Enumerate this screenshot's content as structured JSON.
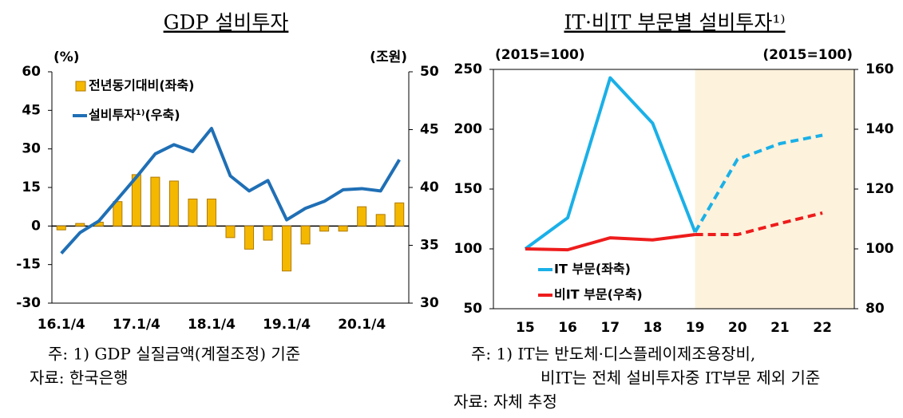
{
  "chart_data": [
    {
      "type": "bar_line",
      "title": "GDP 설비투자",
      "ylabel": "(%)",
      "y2label": "(조원)",
      "categories": [
        "16.1/4",
        null,
        null,
        null,
        "17.1/4",
        null,
        null,
        null,
        "18.1/4",
        null,
        null,
        null,
        "19.1/4",
        null,
        null,
        null,
        "20.1/4",
        null,
        null
      ],
      "ylim": [
        -30,
        60
      ],
      "yticks": [
        -30,
        -15,
        0,
        15,
        30,
        45,
        60
      ],
      "y2lim": [
        30,
        50
      ],
      "y2ticks": [
        30,
        35,
        40,
        45,
        50
      ],
      "legend": "upper left",
      "series": [
        {
          "name": "전년동기대비(좌축)",
          "type": "bar",
          "color": "#f5b800",
          "values": [
            -1.5,
            1,
            1.5,
            9.5,
            20,
            19,
            17.5,
            10.5,
            10.5,
            -4.5,
            -9,
            -5.5,
            -17.5,
            -7,
            -2,
            -2,
            7.5,
            4.5,
            9
          ]
        },
        {
          "name": "설비투자¹⁾(우축)",
          "type": "line",
          "axis": "y2",
          "color": "#1f6fb5",
          "values": [
            34.3,
            36.1,
            37.1,
            39.0,
            40.9,
            42.9,
            43.7,
            43.1,
            45.1,
            41.0,
            39.7,
            40.6,
            37.2,
            38.2,
            38.8,
            39.8,
            39.9,
            39.7,
            42.4
          ]
        }
      ],
      "notes": [
        "주: 1) GDP 실질금액(계절조정) 기준",
        "자료: 한국은행"
      ]
    },
    {
      "type": "line",
      "title": "IT·비IT 부문별 설비투자¹⁾",
      "ylabel": "(2015=100)",
      "y2label": "(2015=100)",
      "x": [
        15,
        16,
        17,
        18,
        19,
        20,
        21,
        22
      ],
      "xlim": [
        14.25,
        22.75
      ],
      "xticks": [
        15,
        16,
        17,
        18,
        19,
        20,
        21,
        22
      ],
      "ylim": [
        50,
        250
      ],
      "yticks": [
        50,
        100,
        150,
        200,
        250
      ],
      "y2lim": [
        80,
        160
      ],
      "y2ticks": [
        80,
        100,
        120,
        140,
        160
      ],
      "forecast_from": 19,
      "legend": "lower left",
      "series": [
        {
          "name": "IT 부문(좌축)",
          "color": "#1ab0e8",
          "values": [
            100,
            126,
            243,
            205,
            114,
            175,
            188,
            195
          ]
        },
        {
          "name": "비IT 부문(우축)",
          "axis": "y2",
          "color": "#ee1c1c",
          "values": [
            100,
            99.7,
            103.7,
            103,
            104.8,
            104.8,
            108.5,
            112
          ]
        }
      ],
      "notes": [
        "주: 1) IT는 반도체·디스플레이제조용장비,",
        "비IT는 전체 설비투자중 IT부문 제외 기준",
        "자료: 자체 추정"
      ]
    }
  ]
}
